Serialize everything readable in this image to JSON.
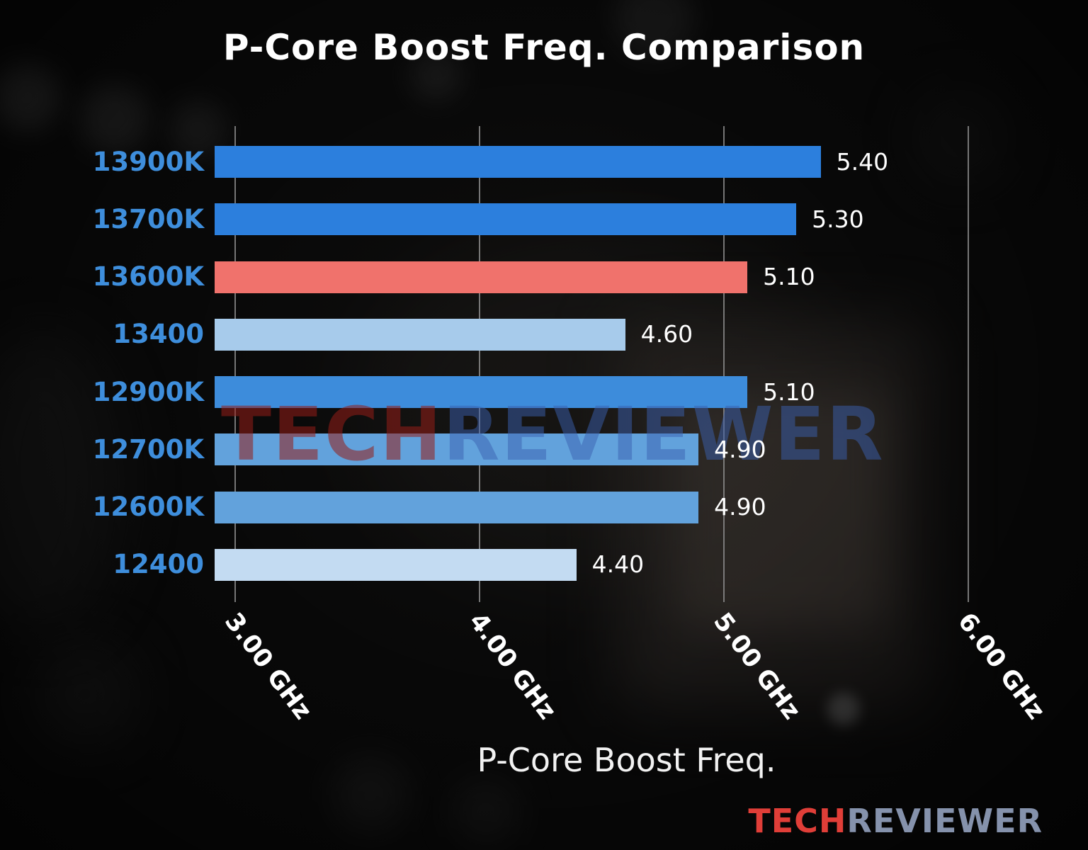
{
  "chart_data": {
    "type": "bar",
    "orientation": "horizontal",
    "title": "P-Core Boost Freq. Comparison",
    "xlabel": "P-Core Boost Freq.",
    "categories": [
      "13900K",
      "13700K",
      "13600K",
      "13400",
      "12900K",
      "12700K",
      "12600K",
      "12400"
    ],
    "values": [
      5.4,
      5.3,
      5.1,
      4.6,
      5.1,
      4.9,
      4.9,
      4.4
    ],
    "value_labels": [
      "5.40",
      "5.30",
      "5.10",
      "4.60",
      "5.10",
      "4.90",
      "4.90",
      "4.40"
    ],
    "bar_colors": [
      "#2c7fdd",
      "#2c7fdd",
      "#f0726c",
      "#a7cbeb",
      "#3d8cdb",
      "#62a2dc",
      "#62a2dc",
      "#c3dbf2"
    ],
    "highlight_category": "13600K",
    "x_ticks": [
      {
        "value": 3,
        "label": "3.00 GHz"
      },
      {
        "value": 4,
        "label": "4.00 GHz"
      },
      {
        "value": 5,
        "label": "5.00 GHz"
      },
      {
        "value": 6,
        "label": "6.00 GHz"
      }
    ],
    "xlim": [
      3.0,
      6.0
    ],
    "grid": true,
    "category_label_color": "#3e8edc",
    "value_label_color": "#ffffff",
    "grid_color": "#8a8a8a"
  },
  "watermark": {
    "text_red": "TECH",
    "text_blue": "REVIEWER"
  },
  "logo": {
    "text_red": "TECH",
    "text_blue": "REVIEWER"
  }
}
